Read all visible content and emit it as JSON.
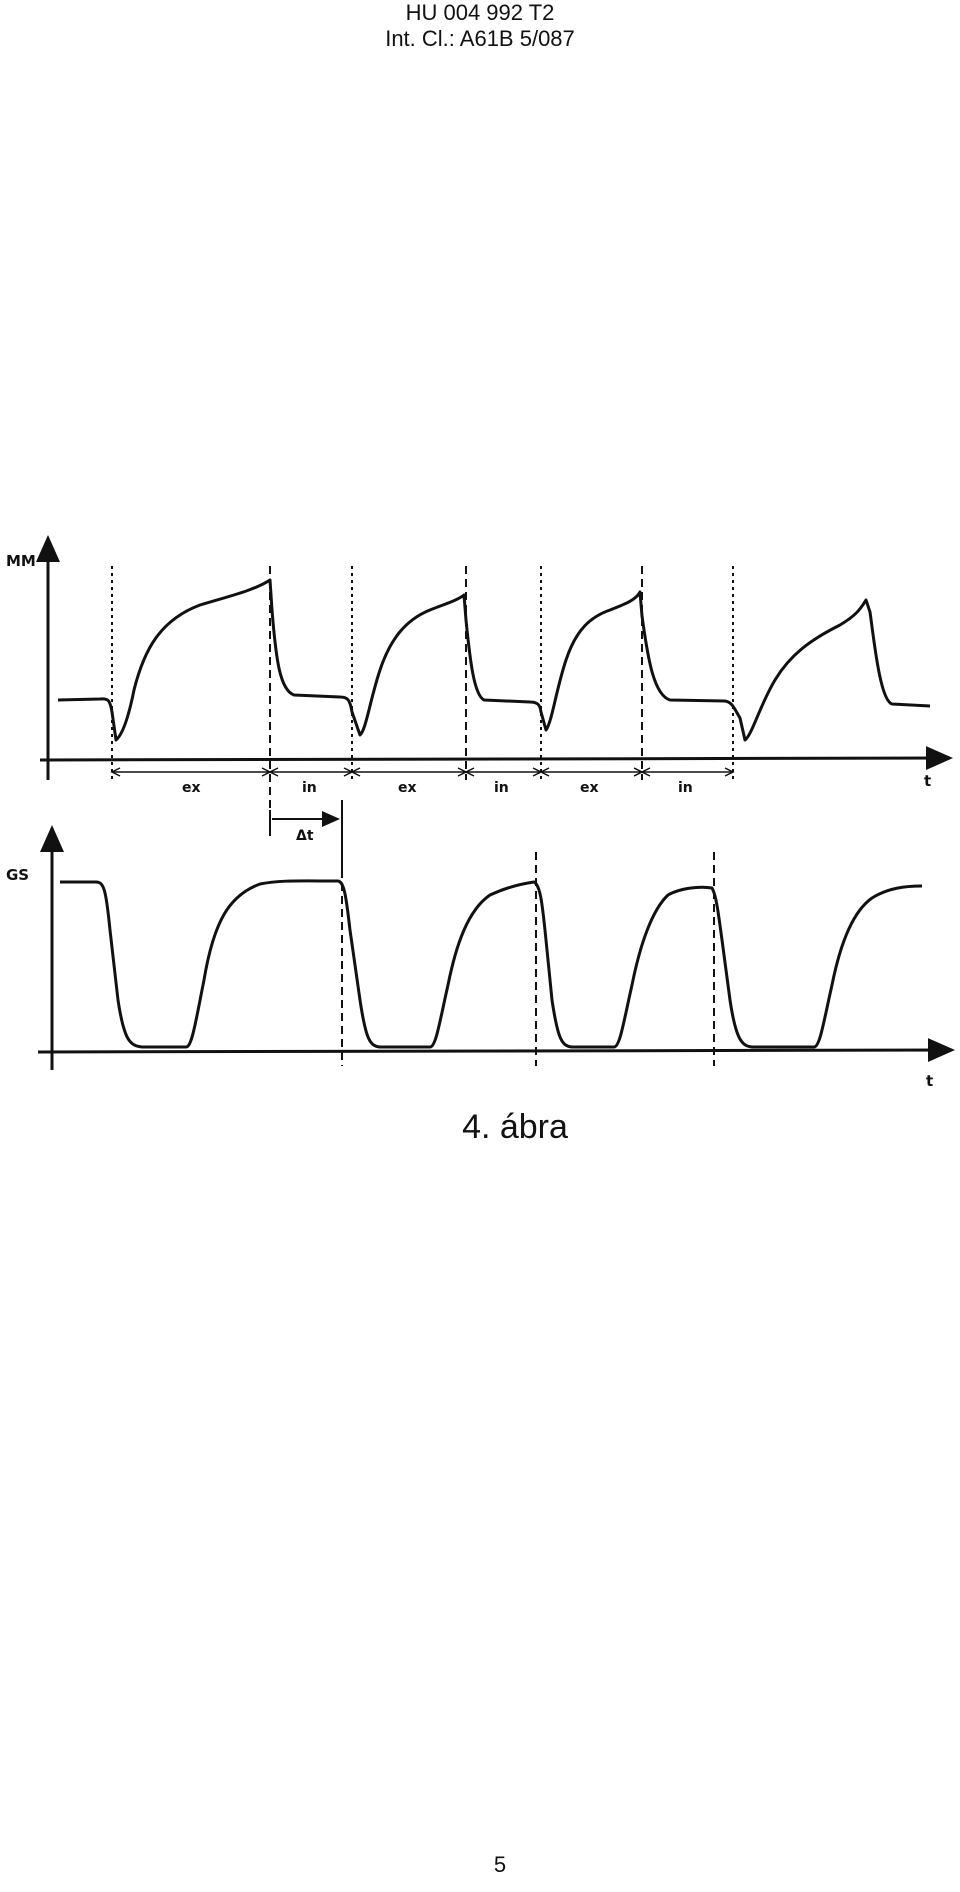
{
  "header": {
    "line1": "HU 004 992 T2",
    "line2": "Int. Cl.: A61B 5/087"
  },
  "figure": {
    "top_plot": {
      "y_label": "MM",
      "x_label": "t",
      "segments": [
        "ex",
        "in",
        "ex",
        "in",
        "ex",
        "in"
      ],
      "delta_label": "Δt"
    },
    "bottom_plot": {
      "y_label": "GS",
      "x_label": "t"
    }
  },
  "caption": "4. ábra",
  "page_number": "5"
}
